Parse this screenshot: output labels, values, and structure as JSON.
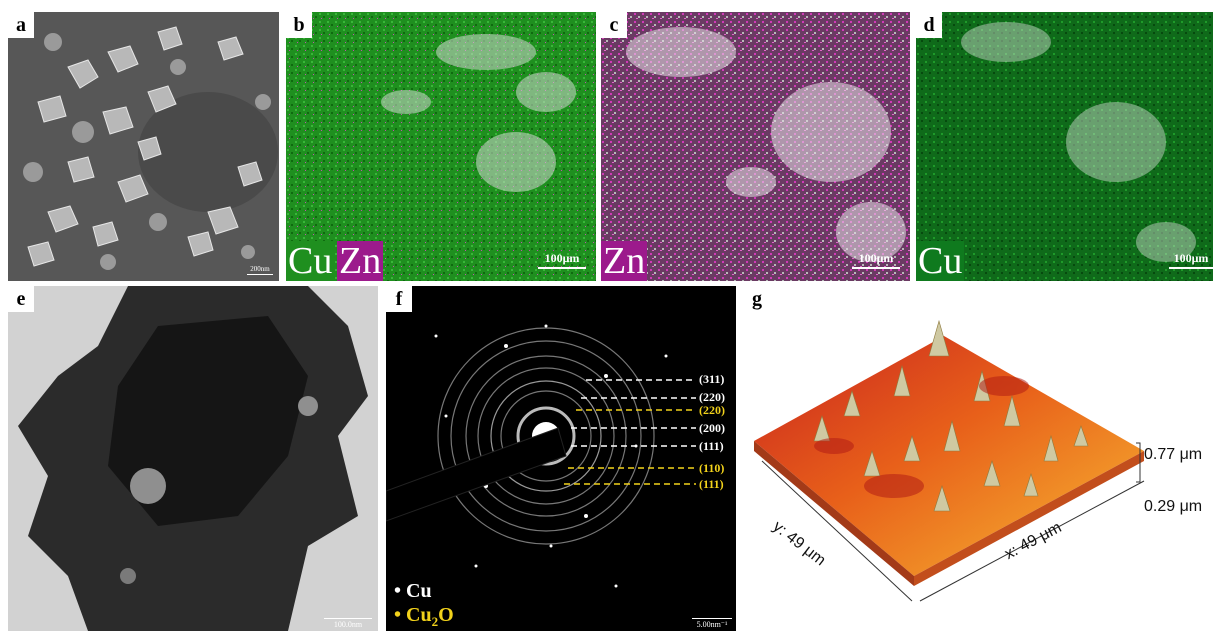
{
  "panels": {
    "a": {
      "label": "a",
      "scale": "200nm"
    },
    "b": {
      "label": "b",
      "elements": [
        "Cu",
        "Zn"
      ],
      "scale": "100μm"
    },
    "c": {
      "label": "c",
      "elements": [
        "Zn"
      ],
      "scale": "100μm"
    },
    "d": {
      "label": "d",
      "elements": [
        "Cu"
      ],
      "scale": "100μm"
    },
    "e": {
      "label": "e",
      "scale": "100.0nm"
    },
    "f": {
      "label": "f",
      "scale": "5.00nm⁻¹",
      "rings": [
        {
          "hkl": "(311)",
          "phase": "Cu"
        },
        {
          "hkl": "(220)",
          "phase": "Cu"
        },
        {
          "hkl": "(220)",
          "phase": "Cu2O"
        },
        {
          "hkl": "(200)",
          "phase": "Cu"
        },
        {
          "hkl": "(111)",
          "phase": "Cu"
        },
        {
          "hkl": "(110)",
          "phase": "Cu2O"
        },
        {
          "hkl": "(111)",
          "phase": "Cu2O"
        }
      ],
      "legend": [
        {
          "symbol": "•",
          "text": "Cu",
          "phase": "Cu"
        },
        {
          "symbol": "•",
          "text": "Cu",
          "sub": "2",
          "tail": "O",
          "phase": "Cu2O"
        }
      ]
    },
    "g": {
      "label": "g",
      "z_max": "0.77 μm",
      "z_min": "0.29 μm",
      "x_axis": "x: 49 μm",
      "y_axis": "y: 49 μm"
    }
  },
  "colors": {
    "cu_map": "#1f8f1f",
    "zn_map": "#b0189a",
    "cu_phase": "#ffffff",
    "cu2o_phase": "#f2d21b"
  }
}
